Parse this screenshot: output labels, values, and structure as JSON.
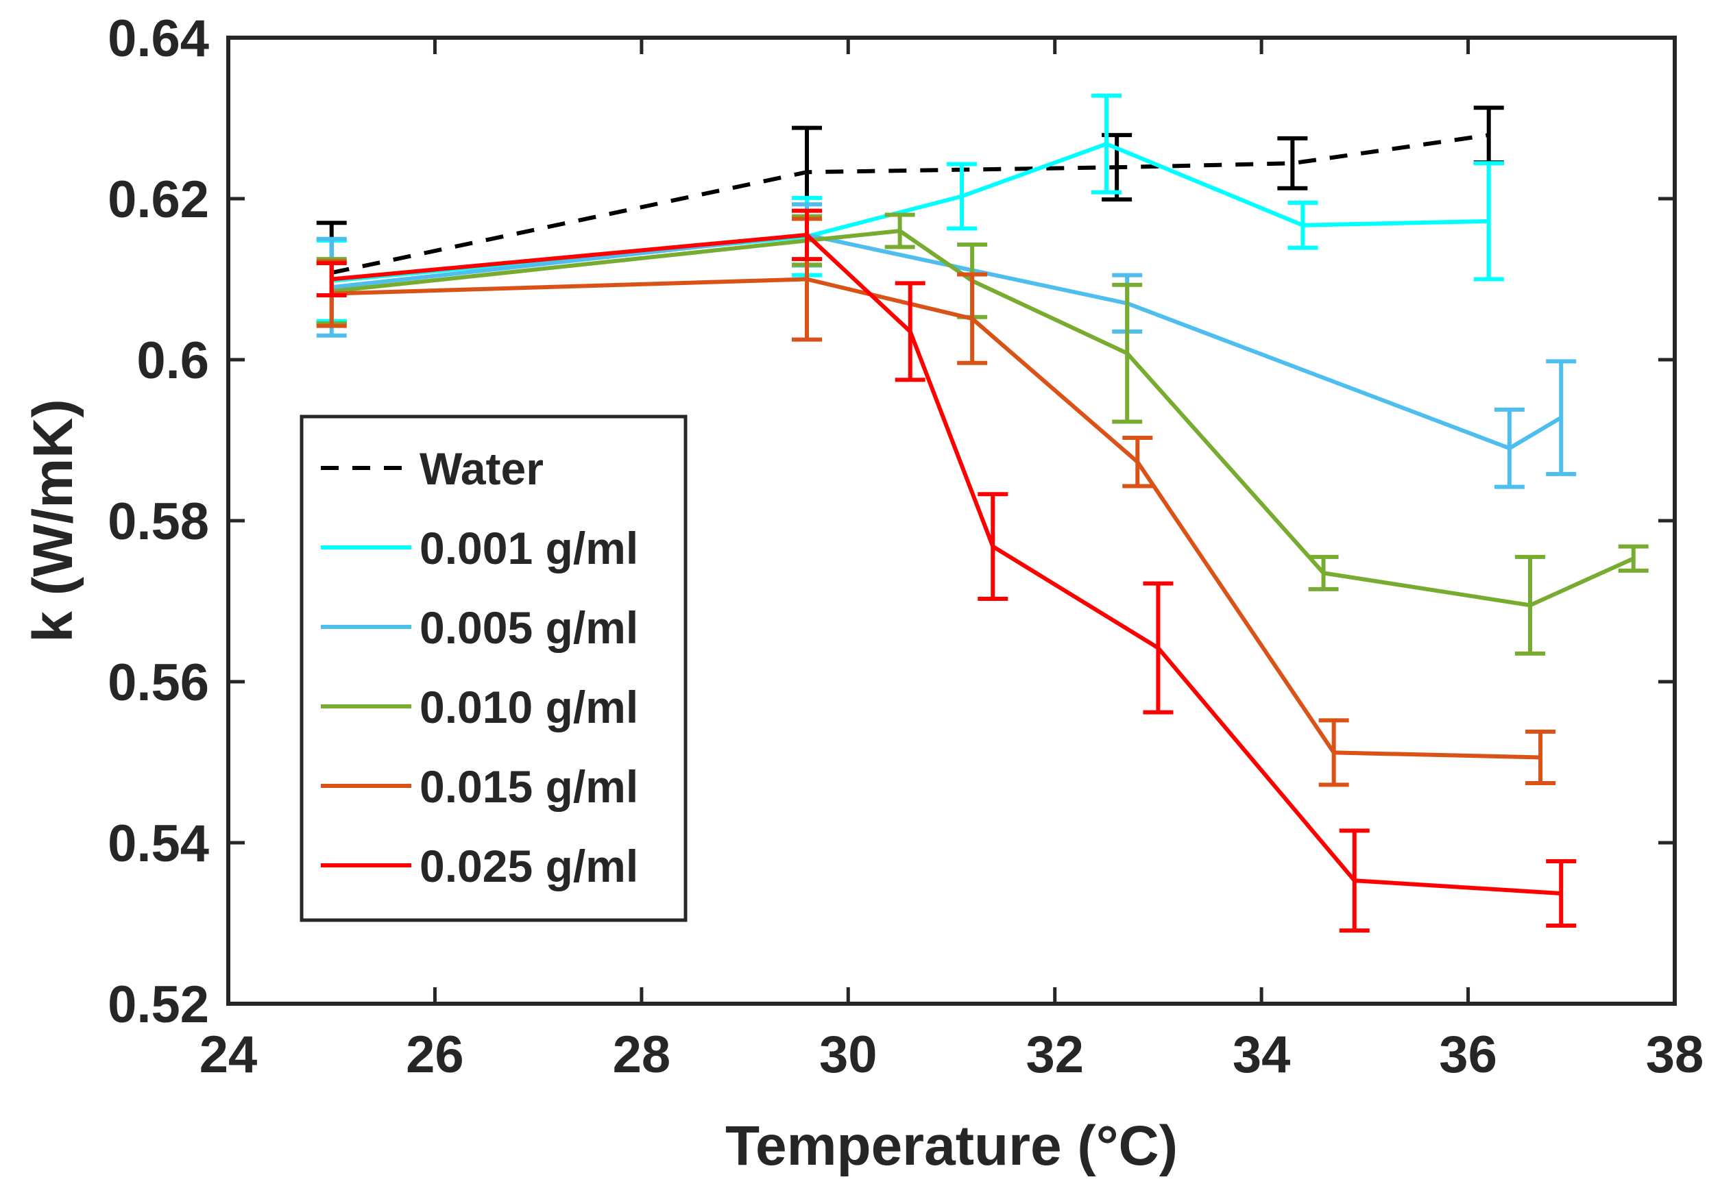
{
  "chart_data": {
    "type": "line",
    "title": "",
    "xlabel": "Temperature (°C)",
    "ylabel": "k (W/mK)",
    "xlim": [
      24,
      38
    ],
    "ylim": [
      0.52,
      0.64
    ],
    "xticks": [
      24,
      26,
      28,
      30,
      32,
      34,
      36,
      38
    ],
    "yticks": [
      0.52,
      0.54,
      0.56,
      0.58,
      0.6,
      0.62,
      0.64
    ],
    "xtick_labels": [
      "24",
      "26",
      "28",
      "30",
      "32",
      "34",
      "36",
      "38"
    ],
    "ytick_labels": [
      "0.52",
      "0.54",
      "0.56",
      "0.58",
      "0.6",
      "0.62",
      "0.64"
    ],
    "grid": false,
    "legend_position": "left-center",
    "series": [
      {
        "name": "Water",
        "color": "#000000",
        "dash": true,
        "x": [
          25.0,
          29.6,
          32.6,
          34.3,
          36.2
        ],
        "y": [
          0.6108,
          0.6233,
          0.6239,
          0.6244,
          0.6279
        ],
        "err": [
          0.0062,
          0.0055,
          0.004,
          0.0031,
          0.0034
        ]
      },
      {
        "name": "0.001 g/ml",
        "color": "#00FFFF",
        "dash": false,
        "x": [
          25.0,
          29.6,
          31.1,
          32.5,
          34.4,
          36.2
        ],
        "y": [
          0.6098,
          0.6153,
          0.6203,
          0.6268,
          0.6167,
          0.6172
        ],
        "err": [
          0.005,
          0.0048,
          0.004,
          0.006,
          0.0028,
          0.0072
        ]
      },
      {
        "name": "0.005 g/ml",
        "color": "#4DBEEE",
        "dash": false,
        "x": [
          25.0,
          29.6,
          32.7,
          36.4,
          36.9
        ],
        "y": [
          0.609,
          0.6155,
          0.607,
          0.589,
          0.5928
        ],
        "err": [
          0.006,
          0.0038,
          0.0035,
          0.0048,
          0.007
        ]
      },
      {
        "name": "0.010 g/ml",
        "color": "#77AC30",
        "dash": false,
        "x": [
          25.0,
          29.6,
          30.5,
          31.2,
          32.7,
          34.6,
          36.6,
          37.6
        ],
        "y": [
          0.6085,
          0.6148,
          0.616,
          0.6098,
          0.6008,
          0.5735,
          0.5695,
          0.5753
        ],
        "err": [
          0.004,
          0.003,
          0.002,
          0.0045,
          0.0085,
          0.002,
          0.006,
          0.0015
        ]
      },
      {
        "name": "0.015 g/ml",
        "color": "#D95319",
        "dash": false,
        "x": [
          25.0,
          29.6,
          31.2,
          32.8,
          34.7,
          36.7
        ],
        "y": [
          0.6082,
          0.61,
          0.6051,
          0.5873,
          0.5512,
          0.5506
        ],
        "err": [
          0.004,
          0.0075,
          0.0055,
          0.003,
          0.004,
          0.0032
        ]
      },
      {
        "name": "0.025 g/ml",
        "color": "#FF0000",
        "dash": false,
        "x": [
          25.0,
          29.6,
          30.6,
          31.4,
          33.0,
          34.9,
          36.9
        ],
        "y": [
          0.61,
          0.6155,
          0.6035,
          0.5768,
          0.5642,
          0.5353,
          0.5337
        ],
        "err": [
          0.002,
          0.003,
          0.006,
          0.0065,
          0.008,
          0.0062,
          0.004
        ]
      }
    ]
  }
}
